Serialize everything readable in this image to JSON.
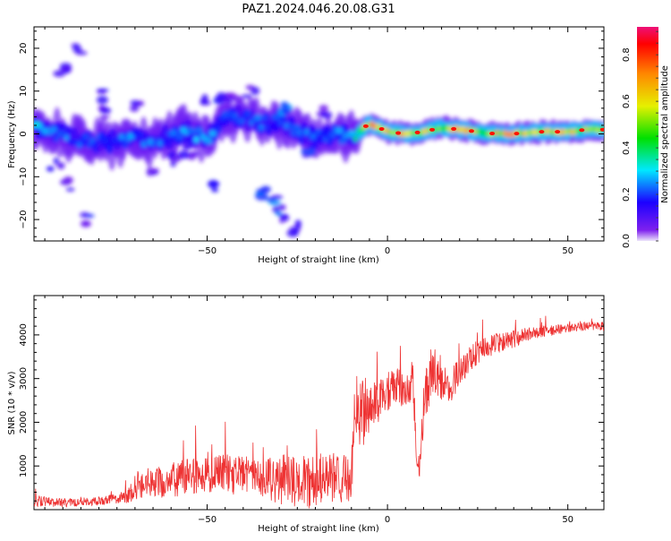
{
  "figure": {
    "title": "PAZ1.2024.046.20.08.G31"
  },
  "chart_data": [
    {
      "type": "heatmap",
      "xlabel": "Height of straight line (km)",
      "ylabel": "Frequency (Hz)",
      "xlim": [
        -98,
        60
      ],
      "ylim": [
        -25,
        25
      ],
      "x_ticks": [
        -50,
        0,
        50
      ],
      "y_ticks": [
        -20,
        -10,
        0,
        10,
        20
      ],
      "colorbar": {
        "label": "Normalized spectral amplitude",
        "range": [
          0,
          0.92
        ],
        "ticks": [
          0.0,
          0.2,
          0.4,
          0.6,
          0.8
        ]
      },
      "ridge": {
        "note": "dominant frequency band",
        "points": [
          {
            "x": -96,
            "f": 1.0,
            "amp": 0.35
          },
          {
            "x": -90,
            "f": -0.5,
            "amp": 0.3
          },
          {
            "x": -85,
            "f": -2.0,
            "amp": 0.3
          },
          {
            "x": -80,
            "f": -1.5,
            "amp": 0.25
          },
          {
            "x": -75,
            "f": -2.0,
            "amp": 0.3
          },
          {
            "x": -70,
            "f": -1.0,
            "amp": 0.3
          },
          {
            "x": -65,
            "f": -1.5,
            "amp": 0.3
          },
          {
            "x": -60,
            "f": -0.5,
            "amp": 0.3
          },
          {
            "x": -55,
            "f": 0.5,
            "amp": 0.35
          },
          {
            "x": -50,
            "f": -1.0,
            "amp": 0.3
          },
          {
            "x": -45,
            "f": 3.5,
            "amp": 0.3
          },
          {
            "x": -40,
            "f": 4.0,
            "amp": 0.3
          },
          {
            "x": -35,
            "f": 2.5,
            "amp": 0.3
          },
          {
            "x": -30,
            "f": 3.0,
            "amp": 0.25
          },
          {
            "x": -25,
            "f": 0.5,
            "amp": 0.3
          },
          {
            "x": -20,
            "f": -1.0,
            "amp": 0.3
          },
          {
            "x": -15,
            "f": 0.0,
            "amp": 0.3
          },
          {
            "x": -10,
            "f": -1.0,
            "amp": 0.35
          },
          {
            "x": -5,
            "f": 2.5,
            "amp": 0.85
          },
          {
            "x": 0,
            "f": 0.5,
            "amp": 0.85
          },
          {
            "x": 5,
            "f": 0.0,
            "amp": 0.75
          },
          {
            "x": 10,
            "f": 0.5,
            "amp": 0.75
          },
          {
            "x": 15,
            "f": 1.5,
            "amp": 0.7
          },
          {
            "x": 20,
            "f": 1.0,
            "amp": 0.8
          },
          {
            "x": 25,
            "f": 0.5,
            "amp": 0.7
          },
          {
            "x": 30,
            "f": 0.0,
            "amp": 0.75
          },
          {
            "x": 35,
            "f": 0.0,
            "amp": 0.8
          },
          {
            "x": 40,
            "f": 0.5,
            "amp": 0.7
          },
          {
            "x": 45,
            "f": 0.5,
            "amp": 0.7
          },
          {
            "x": 50,
            "f": 0.5,
            "amp": 0.75
          },
          {
            "x": 55,
            "f": 1.0,
            "amp": 0.85
          },
          {
            "x": 60,
            "f": 1.0,
            "amp": 0.6
          }
        ]
      },
      "patches": [
        {
          "x": -90,
          "f": 15,
          "amp": 0.12
        },
        {
          "x": -88,
          "f": -12,
          "amp": 0.12
        },
        {
          "x": -85,
          "f": 20,
          "amp": 0.1
        },
        {
          "x": -83,
          "f": -20,
          "amp": 0.15
        },
        {
          "x": -80,
          "f": 9,
          "amp": 0.12
        },
        {
          "x": -78,
          "f": 5,
          "amp": 0.12
        },
        {
          "x": -92,
          "f": -7,
          "amp": 0.12
        },
        {
          "x": -70,
          "f": 7,
          "amp": 0.1
        },
        {
          "x": -65,
          "f": -8,
          "amp": 0.12
        },
        {
          "x": -60,
          "f": -6,
          "amp": 0.15
        },
        {
          "x": -55,
          "f": -4,
          "amp": 0.12
        },
        {
          "x": -50,
          "f": 8,
          "amp": 0.12
        },
        {
          "x": -47,
          "f": 8,
          "amp": 0.15
        },
        {
          "x": -43,
          "f": 9,
          "amp": 0.1
        },
        {
          "x": -38,
          "f": 10,
          "amp": 0.1
        },
        {
          "x": -48,
          "f": -12,
          "amp": 0.15
        },
        {
          "x": -34,
          "f": -14,
          "amp": 0.2
        },
        {
          "x": -32,
          "f": -16,
          "amp": 0.2
        },
        {
          "x": -30,
          "f": -18,
          "amp": 0.2
        },
        {
          "x": -28,
          "f": -20,
          "amp": 0.18
        },
        {
          "x": -26,
          "f": -22,
          "amp": 0.12
        },
        {
          "x": -28,
          "f": 6,
          "amp": 0.3
        },
        {
          "x": -22,
          "f": -4,
          "amp": 0.2
        },
        {
          "x": -18,
          "f": 5,
          "amp": 0.1
        }
      ]
    },
    {
      "type": "line",
      "xlabel": "Height of straight line (km)",
      "ylabel": "SNR (10 * v/v)",
      "xlim": [
        -98,
        60
      ],
      "ylim": [
        0,
        4900
      ],
      "x_ticks": [
        -50,
        0,
        50
      ],
      "y_ticks": [
        1000,
        2000,
        3000,
        4000
      ],
      "color": "#ee3333",
      "envelope_note": "mean SNR level and peak-to-peak noise amplitude versus height",
      "x": [
        -98,
        -90,
        -85,
        -80,
        -75,
        -72,
        -70,
        -65,
        -60,
        -55,
        -50,
        -45,
        -40,
        -35,
        -30,
        -25,
        -20,
        -15,
        -12,
        -10,
        -9,
        -7,
        -5,
        -3,
        0,
        2,
        5,
        7,
        8,
        9,
        10,
        12,
        13,
        15,
        18,
        20,
        25,
        30,
        35,
        40,
        45,
        50,
        55,
        60
      ],
      "mean": [
        200,
        150,
        180,
        200,
        260,
        300,
        550,
        620,
        680,
        750,
        800,
        820,
        760,
        700,
        680,
        650,
        660,
        700,
        720,
        700,
        2400,
        2300,
        2300,
        2500,
        2600,
        2900,
        2700,
        3000,
        1400,
        1000,
        2400,
        3100,
        3200,
        2800,
        2900,
        3200,
        3600,
        3800,
        3900,
        4050,
        4100,
        4150,
        4200,
        4200
      ],
      "noise": [
        250,
        200,
        200,
        200,
        250,
        300,
        700,
        700,
        800,
        850,
        800,
        900,
        900,
        900,
        1200,
        1200,
        1300,
        1200,
        1100,
        1000,
        2000,
        1800,
        1200,
        1100,
        900,
        900,
        900,
        900,
        700,
        600,
        1200,
        1200,
        1100,
        900,
        800,
        700,
        600,
        500,
        400,
        300,
        250,
        200,
        200,
        200
      ]
    }
  ]
}
